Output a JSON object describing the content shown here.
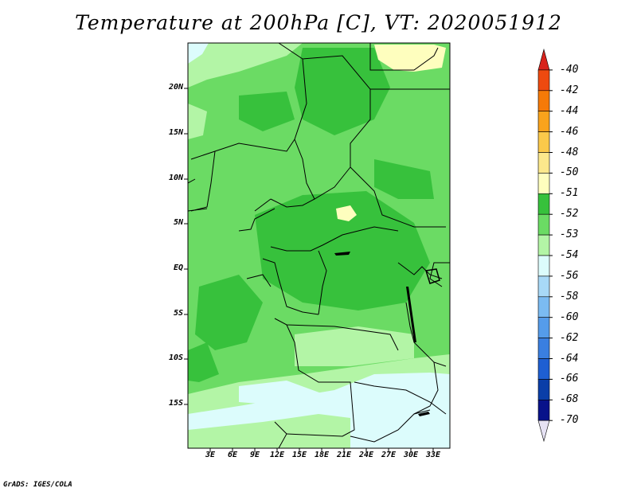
{
  "title": "Temperature at 200hPa [C], VT: 2020051912",
  "credit": "GrADS: IGES/COLA",
  "lat_labels": [
    "20N",
    "15N",
    "10N",
    "5N",
    "EQ",
    "5S",
    "10S",
    "15S"
  ],
  "lon_labels": [
    "3E",
    "6E",
    "9E",
    "12E",
    "15E",
    "18E",
    "21E",
    "24E",
    "27E",
    "30E",
    "33E"
  ],
  "colorbar": {
    "labels": [
      "-40",
      "-42",
      "-44",
      "-46",
      "-48",
      "-50",
      "-51",
      "-52",
      "-53",
      "-54",
      "-56",
      "-58",
      "-60",
      "-62",
      "-64",
      "-66",
      "-68",
      "-70"
    ],
    "colors": [
      "#d8231c",
      "#ee4a10",
      "#f57a08",
      "#f9a31c",
      "#fbc94a",
      "#fce88c",
      "#fefebe",
      "#37c13c",
      "#6bdb64",
      "#b3f5a6",
      "#dcfcfc",
      "#a8d9f7",
      "#7bbbf2",
      "#559cea",
      "#3a7fe0",
      "#1e5fd2",
      "#0a3ea8",
      "#08128a",
      "#e6e2f4"
    ]
  }
}
